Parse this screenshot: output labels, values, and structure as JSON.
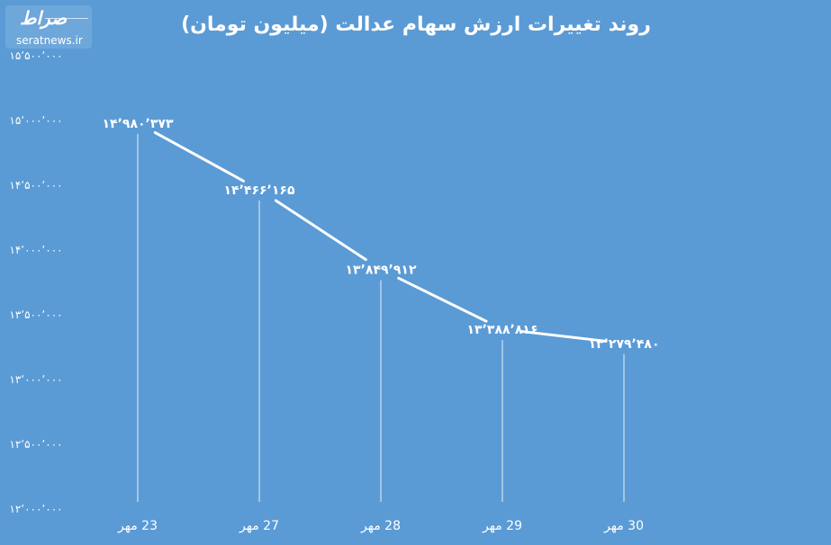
{
  "watermark": {
    "logo_text": "صراط",
    "url_text": "seratnews.ir"
  },
  "colors": {
    "background": "#5b9bd5",
    "line": "#ffffff",
    "drop_line": "#ffffff",
    "text": "#ffffff"
  },
  "chart_data": {
    "type": "line",
    "title": "روند تغییرات ارزش سهام عدالت (میلیون تومان)",
    "xlabel": "",
    "ylabel": "",
    "grid": false,
    "legend": "none",
    "categories": [
      "23 مهر",
      "27 مهر",
      "28 مهر",
      "29 مهر",
      "30 مهر"
    ],
    "values": [
      14980373,
      14466165,
      13849912,
      13388816,
      13279480
    ],
    "data_labels": [
      "۱۴٬۹۸۰٬۳۷۳",
      "۱۴٬۴۶۶٬۱۶۵",
      "۱۳٬۸۴۹٬۹۱۲",
      "۱۳٬۳۸۸٬۸۱۶",
      "۱۳٬۲۷۹٬۴۸۰"
    ],
    "ylim": [
      12000000,
      15500000
    ],
    "y_ticks": [
      15500000,
      15000000,
      14500000,
      14000000,
      13500000,
      13000000,
      12500000,
      12000000
    ],
    "y_tick_labels": [
      "۱۵٬۵۰۰٬۰۰۰",
      "۱۵٬۰۰۰٬۰۰۰",
      "۱۴٬۵۰۰٬۰۰۰",
      "۱۴٬۰۰۰٬۰۰۰",
      "۱۳٬۵۰۰٬۰۰۰",
      "۱۳٬۰۰۰٬۰۰۰",
      "۱۲٬۵۰۰٬۰۰۰",
      "۱۲٬۰۰۰٬۰۰۰"
    ]
  }
}
